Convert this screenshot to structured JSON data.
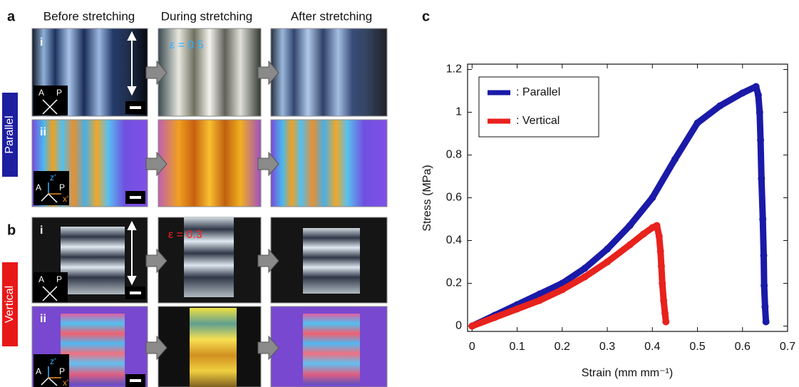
{
  "panel_a": {
    "label": "a",
    "headers": [
      "Before stretching",
      "During stretching",
      "After stretching"
    ],
    "side_label": "Parallel",
    "rows": [
      "i",
      "ii"
    ],
    "strain_label": "ε = 0.5",
    "axes_i": [
      "A",
      "P"
    ],
    "axes_ii": [
      "A",
      "z'",
      "P",
      "x'"
    ]
  },
  "panel_b": {
    "label": "b",
    "side_label": "Vertical",
    "rows": [
      "i",
      "ii"
    ],
    "strain_label": "ε = 0.3",
    "axes_i": [
      "A",
      "P"
    ],
    "axes_ii": [
      "A",
      "z'",
      "P",
      "x'"
    ]
  },
  "panel_c": {
    "label": "c"
  },
  "chart_data": {
    "type": "scatter",
    "x_label": "Strain (mm mm⁻¹)",
    "y_label": "Stress (MPa)",
    "xlim": [
      -0.01,
      0.7
    ],
    "ylim": [
      -0.025,
      1.225
    ],
    "xticks": [
      0,
      0.1,
      0.2,
      0.3,
      0.4,
      0.5,
      0.6,
      0.7
    ],
    "yticks": [
      0,
      0.2,
      0.4,
      0.6,
      0.8,
      1,
      1.2
    ],
    "legend": "upper left",
    "series": [
      {
        "name": ": Parallel",
        "color": "#1a1aa8",
        "x": [
          0,
          0.05,
          0.1,
          0.15,
          0.2,
          0.25,
          0.3,
          0.35,
          0.4,
          0.45,
          0.5,
          0.55,
          0.6,
          0.63,
          0.635,
          0.638,
          0.64,
          0.642,
          0.645,
          0.647,
          0.648,
          0.65,
          0.652
        ],
        "values": [
          0,
          0.05,
          0.1,
          0.15,
          0.2,
          0.27,
          0.36,
          0.47,
          0.6,
          0.78,
          0.95,
          1.03,
          1.09,
          1.12,
          1.08,
          1.0,
          0.87,
          0.69,
          0.5,
          0.33,
          0.19,
          0.09,
          0.02
        ]
      },
      {
        "name": ": Vertical",
        "color": "#e8221c",
        "x": [
          0,
          0.05,
          0.1,
          0.15,
          0.2,
          0.25,
          0.3,
          0.35,
          0.38,
          0.4,
          0.41,
          0.415,
          0.418,
          0.42,
          0.422,
          0.425,
          0.428,
          0.43
        ],
        "values": [
          0,
          0.04,
          0.08,
          0.12,
          0.17,
          0.23,
          0.3,
          0.38,
          0.43,
          0.46,
          0.47,
          0.42,
          0.35,
          0.28,
          0.2,
          0.12,
          0.06,
          0.02
        ]
      }
    ]
  }
}
